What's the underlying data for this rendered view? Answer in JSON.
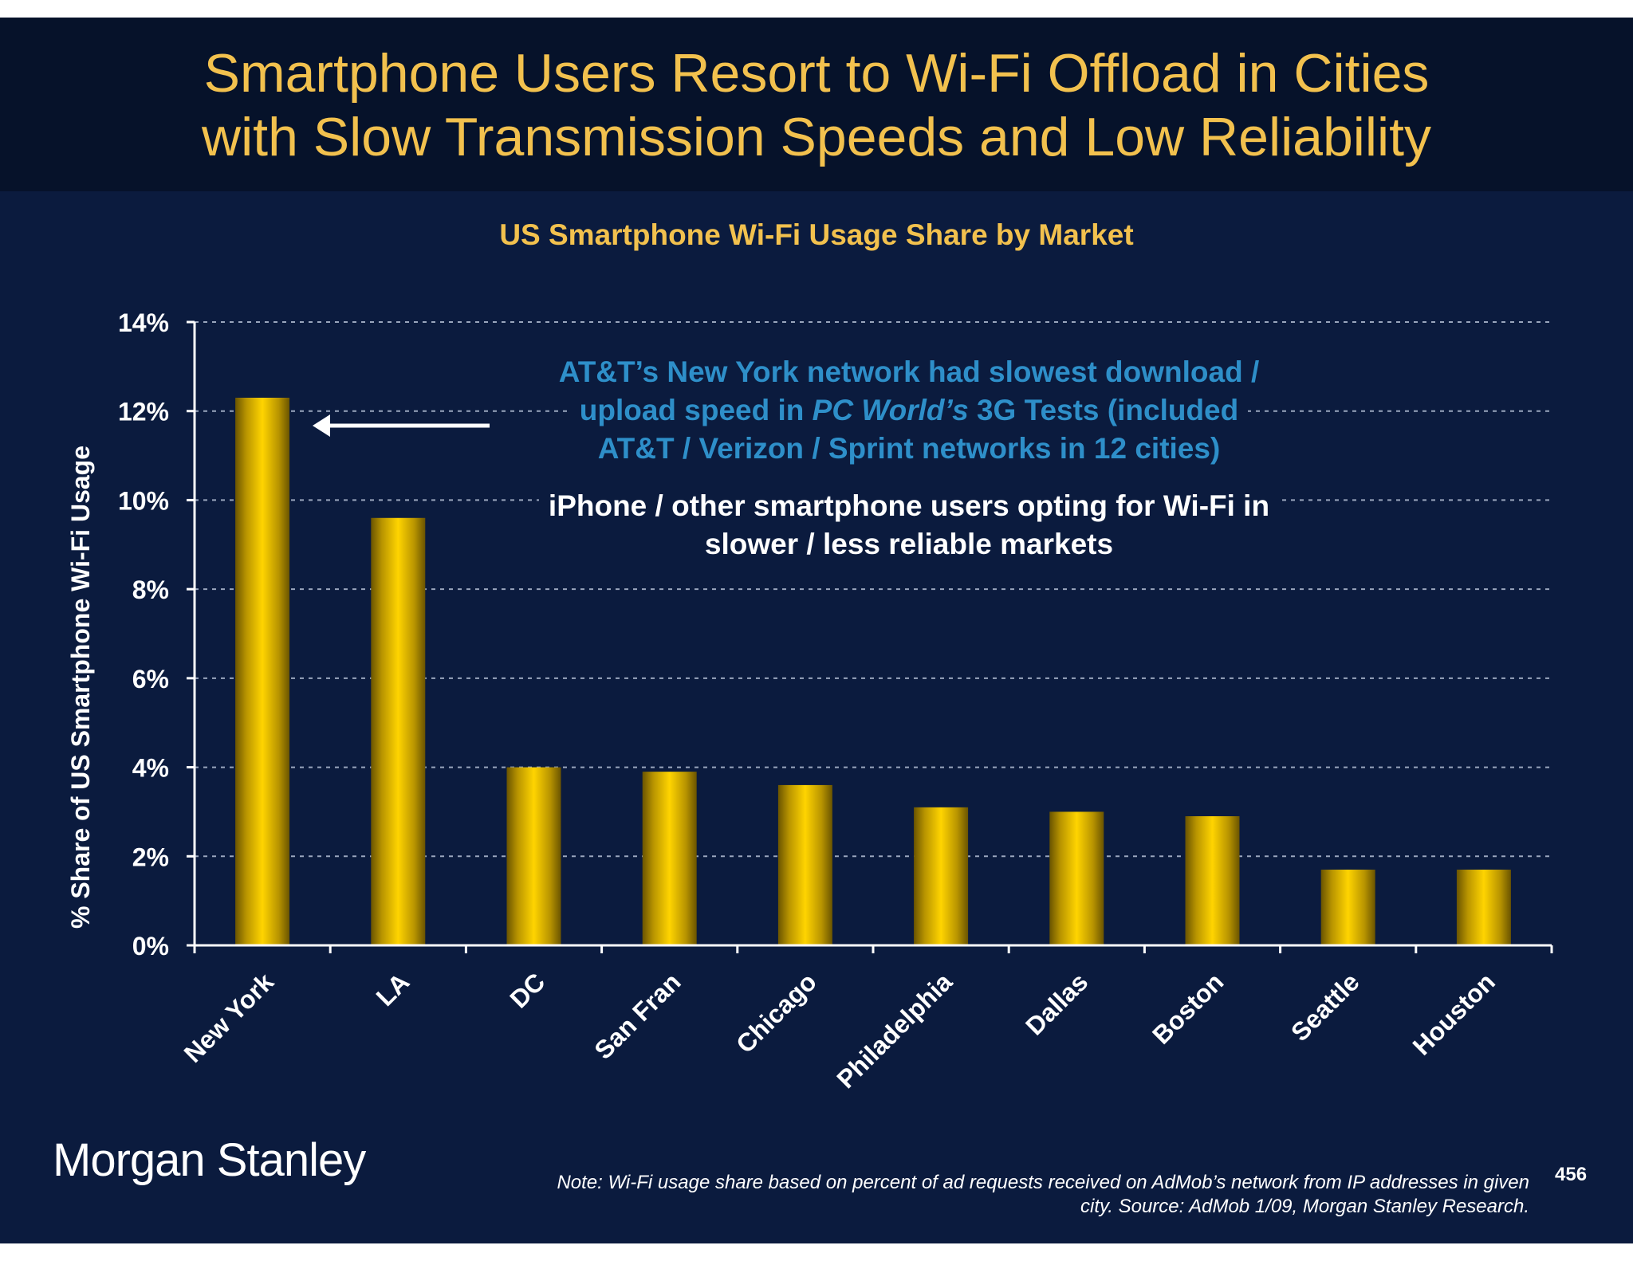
{
  "slide": {
    "title_line1": "Smartphone Users Resort to Wi-Fi Offload in Cities",
    "title_line2": "with Slow Transmission Speeds and Low Reliability",
    "logo": "Morgan Stanley",
    "note_line1": "Note: Wi-Fi usage share based on percent of ad requests received on AdMob’s network from IP addresses in given",
    "note_line2": "city. Source: AdMob 1/09, Morgan Stanley Research.",
    "page_number": "456",
    "colors": {
      "background": "#0b1b3e",
      "title_band": "#06122a",
      "title": "#f2c14e",
      "callout_blue": "#2e8fc9",
      "bar": "#f5c400"
    }
  },
  "annotations": {
    "blue_line1": "AT&T’s New York network had slowest download /",
    "blue_line2_pre": "upload speed in ",
    "blue_line2_em": "PC World’s",
    "blue_line2_post": " 3G Tests (included",
    "blue_line3": "AT&T / Verizon / Sprint networks in 12 cities)",
    "white_line1": "iPhone / other smartphone users opting for Wi-Fi in",
    "white_line2": "slower / less reliable markets",
    "arrow": "left-arrow pointing to New York bar"
  },
  "chart_data": {
    "type": "bar",
    "title": "US Smartphone Wi-Fi Usage Share by Market",
    "ylabel": "% Share of US Smartphone Wi-Fi Usage",
    "xlabel": "",
    "categories": [
      "New York",
      "LA",
      "DC",
      "San Fran",
      "Chicago",
      "Philadelphia",
      "Dallas",
      "Boston",
      "Seattle",
      "Houston"
    ],
    "values": [
      12.3,
      9.6,
      4.0,
      3.9,
      3.6,
      3.1,
      3.0,
      2.9,
      1.7,
      1.7
    ],
    "ylim": [
      0,
      14
    ],
    "yticks": [
      0,
      2,
      4,
      6,
      8,
      10,
      12,
      14
    ],
    "ytick_suffix": "%",
    "grid": true,
    "legend": "none"
  }
}
